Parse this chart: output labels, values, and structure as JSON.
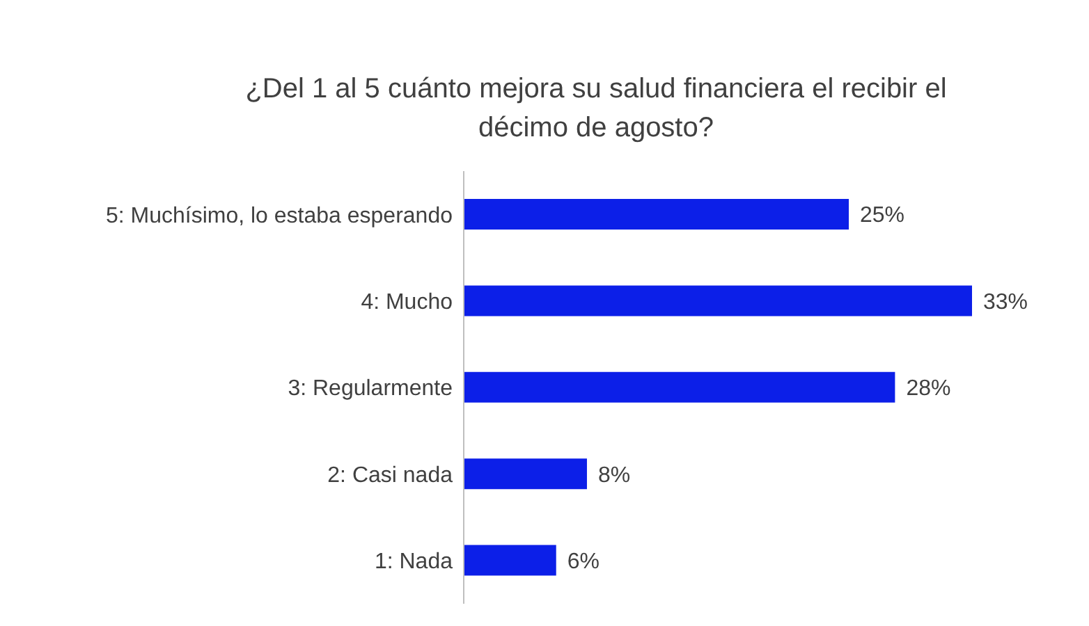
{
  "chart_data": {
    "type": "bar",
    "orientation": "horizontal",
    "title": "¿Del 1 al 5 cuánto mejora su salud financiera el recibir el décimo de agosto?",
    "categories": [
      "5: Muchísimo, lo estaba esperando",
      "4: Mucho",
      "3: Regularmente",
      "2: Casi nada",
      "1: Nada"
    ],
    "values": [
      25,
      33,
      28,
      8,
      6
    ],
    "value_labels": [
      "25%",
      "33%",
      "28%",
      "8%",
      "6%"
    ],
    "color": "#0c1fe8"
  }
}
